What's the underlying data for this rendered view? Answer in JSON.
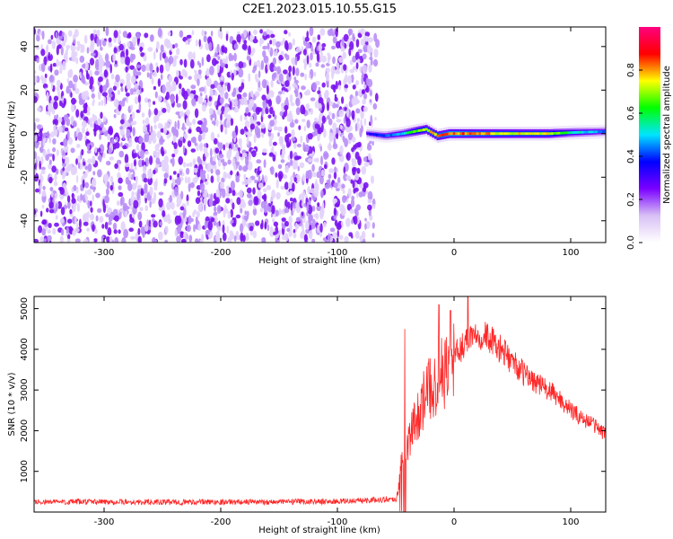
{
  "title": "C2E1.2023.015.10.55.G15",
  "chart_data": [
    {
      "type": "heatmap",
      "xlabel": "Height of straight line (km)",
      "ylabel": "Frequency (Hz)",
      "xlim": [
        -360,
        130
      ],
      "ylim": [
        -50,
        49
      ],
      "x_ticks": [
        -300,
        -200,
        -100,
        0,
        100
      ],
      "y_ticks": [
        -40,
        -20,
        0,
        20,
        40
      ],
      "colorbar": {
        "label": "Normalized spectral amplitude",
        "range": [
          0,
          1
        ],
        "ticks": [
          "0.0",
          "0.2",
          "0.4",
          "0.6",
          "0.8"
        ],
        "colormap": [
          "#ffffff",
          "#d8c0f5",
          "#7a00ff",
          "#0000ff",
          "#00e5ff",
          "#00ff00",
          "#ffff00",
          "#ff0000",
          "#ff0080"
        ]
      },
      "regions": [
        {
          "x_range": [
            -360,
            -70
          ],
          "freq_range": [
            -50,
            47
          ],
          "amplitude_range": [
            0.0,
            0.12
          ],
          "description_color": "#7a00ff"
        },
        {
          "x_range": [
            -75,
            130
          ],
          "freq_center": 0,
          "freq_halfwidth": 3,
          "peak_amplitude": 0.95
        }
      ],
      "ridge": {
        "x": [
          -75,
          -60,
          -45,
          -35,
          -25,
          -15,
          -5,
          0,
          20,
          40,
          60,
          80,
          100,
          130
        ],
        "freq": [
          0,
          -1,
          0,
          1,
          2,
          -1,
          0,
          0,
          0,
          0,
          0,
          0,
          0.5,
          1
        ],
        "amplitude": [
          0.35,
          0.45,
          0.55,
          0.7,
          0.8,
          0.85,
          0.9,
          0.9,
          0.85,
          0.82,
          0.8,
          0.8,
          0.6,
          0.45
        ]
      }
    },
    {
      "type": "line",
      "xlabel": "Height of straight line (km)",
      "ylabel": "SNR (10 * v/v)",
      "xlim": [
        -360,
        130
      ],
      "ylim": [
        0,
        5300
      ],
      "x_ticks": [
        -300,
        -200,
        -100,
        0,
        100
      ],
      "y_ticks": [
        1000,
        2000,
        3000,
        4000,
        5000
      ],
      "color": "#ff0000",
      "x": [
        -360,
        -300,
        -250,
        -200,
        -150,
        -100,
        -50,
        -48,
        -45,
        -40,
        -35,
        -30,
        -25,
        -20,
        -15,
        -10,
        -5,
        0,
        5,
        10,
        15,
        20,
        25,
        30,
        35,
        40,
        50,
        60,
        70,
        80,
        90,
        100,
        110,
        120,
        130
      ],
      "values": [
        250,
        250,
        240,
        250,
        250,
        260,
        320,
        500,
        1200,
        1700,
        2100,
        2500,
        2800,
        3100,
        3200,
        3400,
        3600,
        3800,
        4000,
        4200,
        4400,
        4400,
        4350,
        4300,
        4100,
        4000,
        3700,
        3400,
        3200,
        3000,
        2800,
        2500,
        2300,
        2150,
        1900
      ],
      "spikes": [
        {
          "x": -42,
          "value": 4500
        },
        {
          "x": -13,
          "value": 5100
        },
        {
          "x": -3,
          "value": 4950
        },
        {
          "x": 12,
          "value": 5300
        }
      ]
    }
  ]
}
